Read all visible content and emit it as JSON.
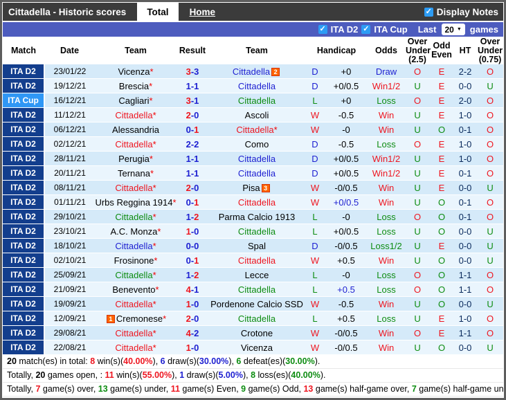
{
  "header": {
    "title": "Cittadella - Historic scores",
    "tabs": [
      {
        "label": "Total",
        "active": true
      },
      {
        "label": "Home",
        "active": false
      }
    ],
    "display_notes": {
      "label": "Display Notes",
      "checked": true
    }
  },
  "filter_bar": {
    "leagues": [
      {
        "label": "ITA D2",
        "checked": true
      },
      {
        "label": "ITA Cup",
        "checked": true
      }
    ],
    "last_label": "Last",
    "games_count": "20",
    "games_label": "games",
    "dropdown_icon": "chevron-down"
  },
  "table": {
    "columns": [
      "Match",
      "Date",
      "Team",
      "Result",
      "Team",
      "Handicap",
      "Odds",
      "Over Under (2.5)",
      "Odd Even",
      "HT",
      "Over Under (0.75)"
    ],
    "rows": [
      {
        "league": "ITA D2",
        "cup": false,
        "date": "23/01/22",
        "t1": "Vicenza",
        "t1star": true,
        "t1cls": "plain",
        "t1badge": "",
        "t2": "Cittadella",
        "t2star": false,
        "t2cls": "draw",
        "t2badge": "2",
        "sh": "3",
        "sa": "3",
        "shcls": "win",
        "sacls": "norm",
        "wdl": "D",
        "wdlcls": "draw",
        "handicap": "+0",
        "hcls": "plain",
        "odds": "Draw",
        "oddscls": "draw",
        "ou25": "O",
        "oddeven": "E",
        "ht": "2-2",
        "ou075": "O"
      },
      {
        "league": "ITA D2",
        "cup": false,
        "date": "19/12/21",
        "t1": "Brescia",
        "t1star": true,
        "t1cls": "plain",
        "t1badge": "",
        "t2": "Cittadella",
        "t2star": false,
        "t2cls": "draw",
        "t2badge": "",
        "sh": "1",
        "sa": "1",
        "shcls": "norm",
        "sacls": "norm",
        "wdl": "D",
        "wdlcls": "draw",
        "handicap": "+0/0.5",
        "hcls": "plain",
        "odds": "Win1/2",
        "oddscls": "win",
        "ou25": "U",
        "oddeven": "E",
        "ht": "0-0",
        "ou075": "U"
      },
      {
        "league": "ITA Cup",
        "cup": true,
        "date": "16/12/21",
        "t1": "Cagliari",
        "t1star": true,
        "t1cls": "plain",
        "t1badge": "",
        "t2": "Cittadella",
        "t2star": false,
        "t2cls": "loss",
        "t2badge": "",
        "sh": "3",
        "sa": "1",
        "shcls": "win",
        "sacls": "norm",
        "wdl": "L",
        "wdlcls": "loss",
        "handicap": "+0",
        "hcls": "plain",
        "odds": "Loss",
        "oddscls": "loss",
        "ou25": "O",
        "oddeven": "E",
        "ht": "2-0",
        "ou075": "O"
      },
      {
        "league": "ITA D2",
        "cup": false,
        "date": "11/12/21",
        "t1": "Cittadella",
        "t1star": true,
        "t1cls": "win",
        "t1badge": "",
        "t2": "Ascoli",
        "t2star": false,
        "t2cls": "plain",
        "t2badge": "",
        "sh": "2",
        "sa": "0",
        "shcls": "win",
        "sacls": "norm",
        "wdl": "W",
        "wdlcls": "win",
        "handicap": "-0.5",
        "hcls": "plain",
        "odds": "Win",
        "oddscls": "win",
        "ou25": "U",
        "oddeven": "E",
        "ht": "1-0",
        "ou075": "O"
      },
      {
        "league": "ITA D2",
        "cup": false,
        "date": "06/12/21",
        "t1": "Alessandria",
        "t1star": false,
        "t1cls": "plain",
        "t1badge": "",
        "t2": "Cittadella",
        "t2star": true,
        "t2cls": "win",
        "t2badge": "",
        "sh": "0",
        "sa": "1",
        "shcls": "norm",
        "sacls": "win",
        "wdl": "W",
        "wdlcls": "win",
        "handicap": "-0",
        "hcls": "plain",
        "odds": "Win",
        "oddscls": "win",
        "ou25": "U",
        "oddeven": "O",
        "ht": "0-1",
        "ou075": "O"
      },
      {
        "league": "ITA D2",
        "cup": false,
        "date": "02/12/21",
        "t1": "Cittadella",
        "t1star": true,
        "t1cls": "win",
        "t1badge": "",
        "t2": "Como",
        "t2star": false,
        "t2cls": "plain",
        "t2badge": "",
        "sh": "2",
        "sa": "2",
        "shcls": "norm",
        "sacls": "norm",
        "wdl": "D",
        "wdlcls": "draw",
        "handicap": "-0.5",
        "hcls": "plain",
        "odds": "Loss",
        "oddscls": "loss",
        "ou25": "O",
        "oddeven": "E",
        "ht": "1-0",
        "ou075": "O"
      },
      {
        "league": "ITA D2",
        "cup": false,
        "date": "28/11/21",
        "t1": "Perugia",
        "t1star": true,
        "t1cls": "plain",
        "t1badge": "",
        "t2": "Cittadella",
        "t2star": false,
        "t2cls": "draw",
        "t2badge": "",
        "sh": "1",
        "sa": "1",
        "shcls": "norm",
        "sacls": "norm",
        "wdl": "D",
        "wdlcls": "draw",
        "handicap": "+0/0.5",
        "hcls": "plain",
        "odds": "Win1/2",
        "oddscls": "win",
        "ou25": "U",
        "oddeven": "E",
        "ht": "1-0",
        "ou075": "O"
      },
      {
        "league": "ITA D2",
        "cup": false,
        "date": "20/11/21",
        "t1": "Ternana",
        "t1star": true,
        "t1cls": "plain",
        "t1badge": "",
        "t2": "Cittadella",
        "t2star": false,
        "t2cls": "draw",
        "t2badge": "",
        "sh": "1",
        "sa": "1",
        "shcls": "norm",
        "sacls": "norm",
        "wdl": "D",
        "wdlcls": "draw",
        "handicap": "+0/0.5",
        "hcls": "plain",
        "odds": "Win1/2",
        "oddscls": "win",
        "ou25": "U",
        "oddeven": "E",
        "ht": "0-1",
        "ou075": "O"
      },
      {
        "league": "ITA D2",
        "cup": false,
        "date": "08/11/21",
        "t1": "Cittadella",
        "t1star": true,
        "t1cls": "win",
        "t1badge": "",
        "t2": "Pisa",
        "t2star": false,
        "t2cls": "plain",
        "t2badge": "3",
        "sh": "2",
        "sa": "0",
        "shcls": "win",
        "sacls": "norm",
        "wdl": "W",
        "wdlcls": "win",
        "handicap": "-0/0.5",
        "hcls": "plain",
        "odds": "Win",
        "oddscls": "win",
        "ou25": "U",
        "oddeven": "E",
        "ht": "0-0",
        "ou075": "U"
      },
      {
        "league": "ITA D2",
        "cup": false,
        "date": "01/11/21",
        "t1": "Urbs Reggina 1914",
        "t1star": true,
        "t1cls": "plain",
        "t1badge": "",
        "t2": "Cittadella",
        "t2star": false,
        "t2cls": "win",
        "t2badge": "",
        "sh": "0",
        "sa": "1",
        "shcls": "norm",
        "sacls": "win",
        "wdl": "W",
        "wdlcls": "win",
        "handicap": "+0/0.5",
        "hcls": "blue",
        "odds": "Win",
        "oddscls": "win",
        "ou25": "U",
        "oddeven": "O",
        "ht": "0-1",
        "ou075": "O"
      },
      {
        "league": "ITA D2",
        "cup": false,
        "date": "29/10/21",
        "t1": "Cittadella",
        "t1star": true,
        "t1cls": "loss",
        "t1badge": "",
        "t2": "Parma Calcio 1913",
        "t2star": false,
        "t2cls": "plain",
        "t2badge": "",
        "sh": "1",
        "sa": "2",
        "shcls": "norm",
        "sacls": "win",
        "wdl": "L",
        "wdlcls": "loss",
        "handicap": "-0",
        "hcls": "plain",
        "odds": "Loss",
        "oddscls": "loss",
        "ou25": "O",
        "oddeven": "O",
        "ht": "0-1",
        "ou075": "O"
      },
      {
        "league": "ITA D2",
        "cup": false,
        "date": "23/10/21",
        "t1": "A.C. Monza",
        "t1star": true,
        "t1cls": "plain",
        "t1badge": "",
        "t2": "Cittadella",
        "t2star": false,
        "t2cls": "loss",
        "t2badge": "",
        "sh": "1",
        "sa": "0",
        "shcls": "win",
        "sacls": "norm",
        "wdl": "L",
        "wdlcls": "loss",
        "handicap": "+0/0.5",
        "hcls": "plain",
        "odds": "Loss",
        "oddscls": "loss",
        "ou25": "U",
        "oddeven": "O",
        "ht": "0-0",
        "ou075": "U"
      },
      {
        "league": "ITA D2",
        "cup": false,
        "date": "18/10/21",
        "t1": "Cittadella",
        "t1star": true,
        "t1cls": "draw",
        "t1badge": "",
        "t2": "Spal",
        "t2star": false,
        "t2cls": "plain",
        "t2badge": "",
        "sh": "0",
        "sa": "0",
        "shcls": "norm",
        "sacls": "norm",
        "wdl": "D",
        "wdlcls": "draw",
        "handicap": "-0/0.5",
        "hcls": "plain",
        "odds": "Loss1/2",
        "oddscls": "loss",
        "ou25": "U",
        "oddeven": "E",
        "ht": "0-0",
        "ou075": "U"
      },
      {
        "league": "ITA D2",
        "cup": false,
        "date": "02/10/21",
        "t1": "Frosinone",
        "t1star": true,
        "t1cls": "plain",
        "t1badge": "",
        "t2": "Cittadella",
        "t2star": false,
        "t2cls": "win",
        "t2badge": "",
        "sh": "0",
        "sa": "1",
        "shcls": "norm",
        "sacls": "win",
        "wdl": "W",
        "wdlcls": "win",
        "handicap": "+0.5",
        "hcls": "plain",
        "odds": "Win",
        "oddscls": "win",
        "ou25": "U",
        "oddeven": "O",
        "ht": "0-0",
        "ou075": "U"
      },
      {
        "league": "ITA D2",
        "cup": false,
        "date": "25/09/21",
        "t1": "Cittadella",
        "t1star": true,
        "t1cls": "loss",
        "t1badge": "",
        "t2": "Lecce",
        "t2star": false,
        "t2cls": "plain",
        "t2badge": "",
        "sh": "1",
        "sa": "2",
        "shcls": "norm",
        "sacls": "win",
        "wdl": "L",
        "wdlcls": "loss",
        "handicap": "-0",
        "hcls": "plain",
        "odds": "Loss",
        "oddscls": "loss",
        "ou25": "O",
        "oddeven": "O",
        "ht": "1-1",
        "ou075": "O"
      },
      {
        "league": "ITA D2",
        "cup": false,
        "date": "21/09/21",
        "t1": "Benevento",
        "t1star": true,
        "t1cls": "plain",
        "t1badge": "",
        "t2": "Cittadella",
        "t2star": false,
        "t2cls": "loss",
        "t2badge": "",
        "sh": "4",
        "sa": "1",
        "shcls": "win",
        "sacls": "norm",
        "wdl": "L",
        "wdlcls": "loss",
        "handicap": "+0.5",
        "hcls": "blue",
        "odds": "Loss",
        "oddscls": "loss",
        "ou25": "O",
        "oddeven": "O",
        "ht": "1-1",
        "ou075": "O"
      },
      {
        "league": "ITA D2",
        "cup": false,
        "date": "19/09/21",
        "t1": "Cittadella",
        "t1star": true,
        "t1cls": "win",
        "t1badge": "",
        "t2": "Pordenone Calcio SSD",
        "t2star": false,
        "t2cls": "plain",
        "t2badge": "",
        "sh": "1",
        "sa": "0",
        "shcls": "win",
        "sacls": "norm",
        "wdl": "W",
        "wdlcls": "win",
        "handicap": "-0.5",
        "hcls": "plain",
        "odds": "Win",
        "oddscls": "win",
        "ou25": "U",
        "oddeven": "O",
        "ht": "0-0",
        "ou075": "U"
      },
      {
        "league": "ITA D2",
        "cup": false,
        "date": "12/09/21",
        "t1": "Cremonese",
        "t1star": true,
        "t1cls": "plain",
        "t1badge": "1",
        "t2": "Cittadella",
        "t2star": false,
        "t2cls": "loss",
        "t2badge": "",
        "sh": "2",
        "sa": "0",
        "shcls": "win",
        "sacls": "norm",
        "wdl": "L",
        "wdlcls": "loss",
        "handicap": "+0.5",
        "hcls": "plain",
        "odds": "Loss",
        "oddscls": "loss",
        "ou25": "U",
        "oddeven": "E",
        "ht": "1-0",
        "ou075": "O"
      },
      {
        "league": "ITA D2",
        "cup": false,
        "date": "29/08/21",
        "t1": "Cittadella",
        "t1star": true,
        "t1cls": "win",
        "t1badge": "",
        "t2": "Crotone",
        "t2star": false,
        "t2cls": "plain",
        "t2badge": "",
        "sh": "4",
        "sa": "2",
        "shcls": "win",
        "sacls": "norm",
        "wdl": "W",
        "wdlcls": "win",
        "handicap": "-0/0.5",
        "hcls": "plain",
        "odds": "Win",
        "oddscls": "win",
        "ou25": "O",
        "oddeven": "E",
        "ht": "1-1",
        "ou075": "O"
      },
      {
        "league": "ITA D2",
        "cup": false,
        "date": "22/08/21",
        "t1": "Cittadella",
        "t1star": true,
        "t1cls": "win",
        "t1badge": "",
        "t2": "Vicenza",
        "t2star": false,
        "t2cls": "plain",
        "t2badge": "",
        "sh": "1",
        "sa": "0",
        "shcls": "win",
        "sacls": "norm",
        "wdl": "W",
        "wdlcls": "win",
        "handicap": "-0/0.5",
        "hcls": "plain",
        "odds": "Win",
        "oddscls": "win",
        "ou25": "U",
        "oddeven": "O",
        "ht": "0-0",
        "ou075": "U"
      }
    ]
  },
  "footer": {
    "lines": [
      [
        {
          "t": "20",
          "c": "bold"
        },
        {
          "t": " match(es) in total: "
        },
        {
          "t": "8",
          "c": "win"
        },
        {
          "t": " win(s)("
        },
        {
          "t": "40.00%",
          "c": "win"
        },
        {
          "t": "), "
        },
        {
          "t": "6",
          "c": "draw"
        },
        {
          "t": " draw(s)("
        },
        {
          "t": "30.00%",
          "c": "draw"
        },
        {
          "t": "), "
        },
        {
          "t": "6",
          "c": "loss"
        },
        {
          "t": " defeat(es)("
        },
        {
          "t": "30.00%",
          "c": "loss"
        },
        {
          "t": ")."
        }
      ],
      [
        {
          "t": "Totally, "
        },
        {
          "t": "20",
          "c": "bold"
        },
        {
          "t": " games open, : "
        },
        {
          "t": "11",
          "c": "win"
        },
        {
          "t": " win(s)("
        },
        {
          "t": "55.00%",
          "c": "win"
        },
        {
          "t": "), "
        },
        {
          "t": "1",
          "c": "draw"
        },
        {
          "t": " draw(s)("
        },
        {
          "t": "5.00%",
          "c": "draw"
        },
        {
          "t": "), "
        },
        {
          "t": "8",
          "c": "loss"
        },
        {
          "t": " loss(es)("
        },
        {
          "t": "40.00%",
          "c": "loss"
        },
        {
          "t": ")."
        }
      ],
      [
        {
          "t": "Totally, "
        },
        {
          "t": "7",
          "c": "win"
        },
        {
          "t": " game(s) over, "
        },
        {
          "t": "13",
          "c": "loss"
        },
        {
          "t": " game(s) under, "
        },
        {
          "t": "11",
          "c": "win"
        },
        {
          "t": " game(s) Even, "
        },
        {
          "t": "9",
          "c": "loss"
        },
        {
          "t": " game(s) Odd, "
        },
        {
          "t": "13",
          "c": "win"
        },
        {
          "t": " game(s) half-game over, "
        },
        {
          "t": "7",
          "c": "loss"
        },
        {
          "t": " game(s) half-game under"
        }
      ]
    ]
  },
  "colors": {
    "win_red": "#ee1620",
    "draw_blue": "#1d1fd1",
    "loss_green": "#0d8c11",
    "league_navy": "#133e8d",
    "cup_blue": "#2f97f5",
    "filter_bar_indigo": "#4d5cbe",
    "checkbox_blue": "#2d9cf4",
    "badge_orange": "#ff6600",
    "row_odd": "#d5eaf9",
    "row_even": "#eaf5fd",
    "titlebar_gray": "#3b3b3b"
  }
}
